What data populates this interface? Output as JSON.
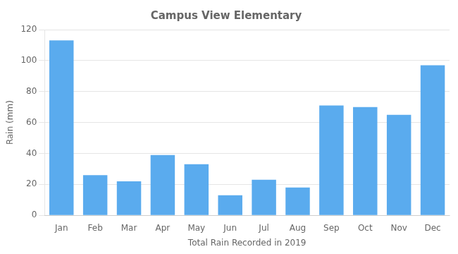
{
  "chart_data": {
    "type": "bar",
    "title": "Campus View Elementary",
    "xlabel": "Total Rain Recorded in 2019",
    "ylabel": "Rain (mm)",
    "categories": [
      "Jan",
      "Feb",
      "Mar",
      "Apr",
      "May",
      "Jun",
      "Jul",
      "Aug",
      "Sep",
      "Oct",
      "Nov",
      "Dec"
    ],
    "values": [
      113,
      26,
      22,
      39,
      33,
      13,
      23,
      18,
      71,
      70,
      65,
      97
    ],
    "color": "#5aabee",
    "ylim": [
      0,
      120
    ],
    "yticks": [
      0,
      20,
      40,
      60,
      80,
      100,
      120
    ],
    "grid": true
  }
}
